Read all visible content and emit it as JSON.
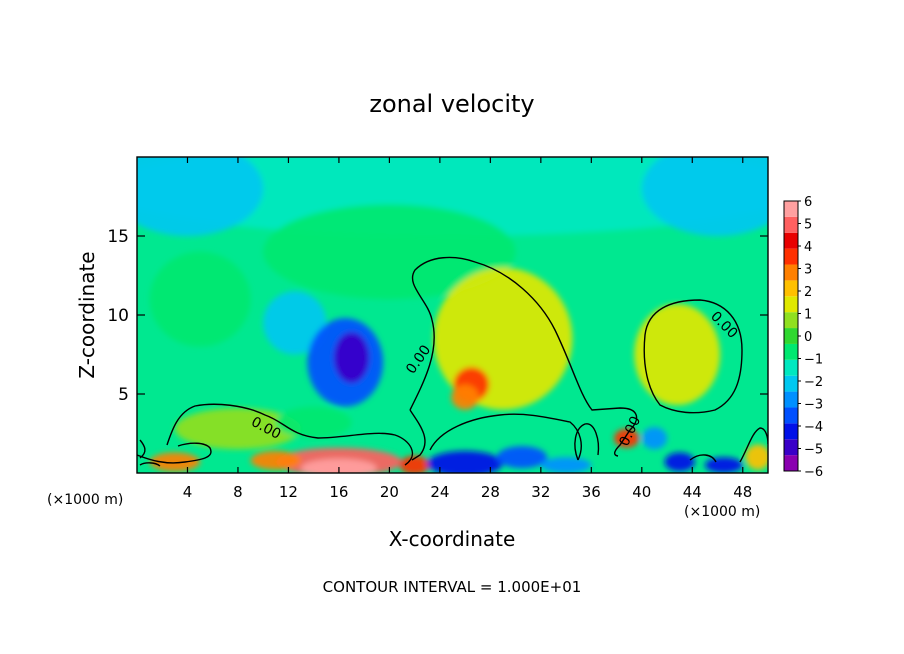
{
  "chart_data": {
    "type": "heatmap",
    "title": "zonal velocity",
    "xlabel": "X-coordinate",
    "ylabel": "Z-coordinate",
    "x_unit": "(×1000 m)",
    "x_unit_right": "(×1000 m)",
    "xlim": [
      0,
      50
    ],
    "ylim": [
      0,
      20
    ],
    "x_ticks": [
      4,
      8,
      12,
      16,
      20,
      24,
      28,
      32,
      36,
      40,
      44,
      48
    ],
    "y_ticks": [
      5,
      10,
      15
    ],
    "colorbar": {
      "min": -6,
      "max": 6,
      "ticks": [
        6,
        5,
        4,
        3,
        2,
        1,
        0,
        -1,
        -2,
        -3,
        -4,
        -5,
        -6
      ],
      "colors": [
        "#8a00b0",
        "#3a00c8",
        "#0010e8",
        "#0050ff",
        "#0090ff",
        "#00c8f0",
        "#00e8c0",
        "#00e870",
        "#30d830",
        "#90e020",
        "#e0e800",
        "#ffc000",
        "#ff8000",
        "#ff3000",
        "#e80000",
        "#ff6060",
        "#ffa0a0"
      ]
    },
    "field_blobs": [
      {
        "x": 25,
        "z": 18,
        "rx": 28,
        "rz": 3,
        "v": -1.6
      },
      {
        "x": 4,
        "z": 18,
        "rx": 6,
        "rz": 3,
        "v": -1.8
      },
      {
        "x": 46,
        "z": 18,
        "rx": 6,
        "rz": 3,
        "v": -1.8
      },
      {
        "x": 20,
        "z": 14,
        "rx": 10,
        "rz": 3,
        "v": -0.4
      },
      {
        "x": 12.5,
        "z": 9.5,
        "rx": 2.5,
        "rz": 2,
        "v": -2.3
      },
      {
        "x": 16.5,
        "z": 7,
        "rx": 3,
        "rz": 2.8,
        "v": -3.6
      },
      {
        "x": 17,
        "z": 7.3,
        "rx": 1.4,
        "rz": 1.6,
        "v": -4.6
      },
      {
        "x": 5,
        "z": 11,
        "rx": 4,
        "rz": 3,
        "v": -0.6
      },
      {
        "x": 29,
        "z": 8.5,
        "rx": 5.5,
        "rz": 4.5,
        "v": 1.6
      },
      {
        "x": 26.5,
        "z": 5.6,
        "rx": 1.4,
        "rz": 1.1,
        "v": 3.2
      },
      {
        "x": 26,
        "z": 4.8,
        "rx": 1.1,
        "rz": 0.8,
        "v": 2.5
      },
      {
        "x": 42.8,
        "z": 7.5,
        "rx": 3.4,
        "rz": 3.2,
        "v": 1.7
      },
      {
        "x": 8,
        "z": 2.8,
        "rx": 5,
        "rz": 1.3,
        "v": 0.9
      },
      {
        "x": 14,
        "z": 3.2,
        "rx": 3,
        "rz": 1,
        "v": -0.9
      },
      {
        "x": 16,
        "z": 0.7,
        "rx": 5,
        "rz": 0.9,
        "v": 4.8
      },
      {
        "x": 16,
        "z": 0.3,
        "rx": 3,
        "rz": 0.6,
        "v": 5.6
      },
      {
        "x": 22,
        "z": 0.5,
        "rx": 1.2,
        "rz": 0.6,
        "v": 3.5
      },
      {
        "x": 11,
        "z": 0.8,
        "rx": 2,
        "rz": 0.6,
        "v": 2.5
      },
      {
        "x": 26,
        "z": 0.6,
        "rx": 3,
        "rz": 0.8,
        "v": -4.5
      },
      {
        "x": 30.5,
        "z": 1.0,
        "rx": 2,
        "rz": 0.7,
        "v": -3.5
      },
      {
        "x": 34,
        "z": 0.5,
        "rx": 2,
        "rz": 0.5,
        "v": -3.0
      },
      {
        "x": 38.8,
        "z": 2.2,
        "rx": 1,
        "rz": 0.6,
        "v": 3.2
      },
      {
        "x": 41,
        "z": 2.2,
        "rx": 1,
        "rz": 0.7,
        "v": -2.5
      },
      {
        "x": 43,
        "z": 0.7,
        "rx": 1.2,
        "rz": 0.6,
        "v": -4.5
      },
      {
        "x": 46.5,
        "z": 0.5,
        "rx": 1.5,
        "rz": 0.5,
        "v": -4.0
      },
      {
        "x": 49.2,
        "z": 1.0,
        "rx": 1,
        "rz": 0.8,
        "v": 1.8
      },
      {
        "x": 3,
        "z": 0.7,
        "rx": 2,
        "rz": 0.6,
        "v": 2.5
      }
    ],
    "contour_label": "0.00",
    "contour_interval_text": "CONTOUR INTERVAL = 1.000E+01",
    "grid": false
  }
}
